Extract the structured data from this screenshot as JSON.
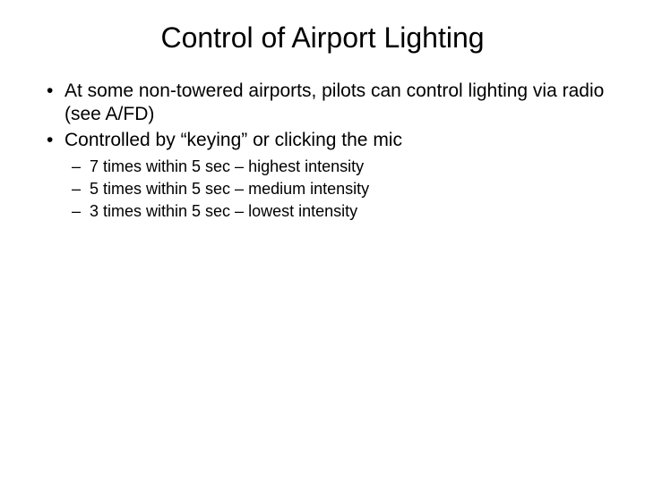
{
  "slide": {
    "title": "Control of Airport Lighting",
    "bullets": [
      "At some non-towered airports, pilots can control lighting via radio (see A/FD)",
      "Controlled by “keying” or clicking the mic"
    ],
    "sub_bullets": [
      "7 times within 5 sec – highest intensity",
      "5 times within 5 sec – medium intensity",
      "3 times within 5 sec – lowest intensity"
    ],
    "styling": {
      "background_color": "#ffffff",
      "text_color": "#000000",
      "title_fontsize": 32,
      "bullet_fontsize": 21,
      "sub_bullet_fontsize": 18,
      "font_family": "Arial"
    }
  }
}
